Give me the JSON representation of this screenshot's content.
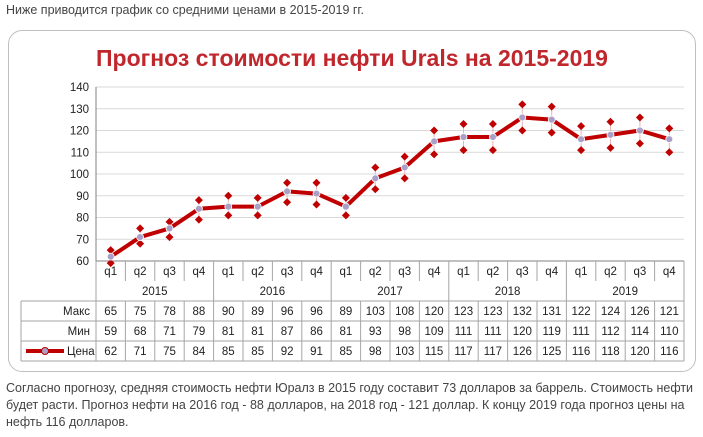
{
  "intro_text": "Ниже приводится график со средними ценами в 2015-2019 гг.",
  "footer_text": "Согласно прогнозу, средняя стоимость нефти Юралз в 2015 году составит 73 долларов за баррель. Стоимость нефти будет расти. Прогноз нефти на 2016 год - 88 долларов, на 2018 год - 121 доллар. К концу 2019 года прогноз цены на нефть 116 долларов.",
  "colors": {
    "title": "#c0272d",
    "price_line": "#c00000",
    "marker": "#a9a0c8",
    "grid": "#d9d9d9",
    "axis": "#808080"
  },
  "chart_data": {
    "type": "line",
    "title": "Прогноз стоимости нефти Urals на 2015-2019",
    "ylim": [
      60,
      140
    ],
    "yticks": [
      60,
      70,
      80,
      90,
      100,
      110,
      120,
      130,
      140
    ],
    "grid": true,
    "quarters": [
      "q1",
      "q2",
      "q3",
      "q4",
      "q1",
      "q2",
      "q3",
      "q4",
      "q1",
      "q2",
      "q3",
      "q4",
      "q1",
      "q2",
      "q3",
      "q4",
      "q1",
      "q2",
      "q3",
      "q4"
    ],
    "years": [
      "2015",
      "2016",
      "2017",
      "2018",
      "2019"
    ],
    "series": [
      {
        "name": "Макс",
        "values": [
          65,
          75,
          78,
          88,
          90,
          89,
          96,
          96,
          89,
          103,
          108,
          120,
          123,
          123,
          132,
          131,
          122,
          124,
          126,
          121
        ]
      },
      {
        "name": "Мин",
        "values": [
          59,
          68,
          71,
          79,
          81,
          81,
          87,
          86,
          81,
          93,
          98,
          109,
          111,
          111,
          120,
          119,
          111,
          112,
          114,
          110
        ]
      },
      {
        "name": "Цена",
        "values": [
          62,
          71,
          75,
          84,
          85,
          85,
          92,
          91,
          85,
          98,
          103,
          115,
          117,
          117,
          126,
          125,
          116,
          118,
          120,
          116
        ]
      }
    ]
  }
}
